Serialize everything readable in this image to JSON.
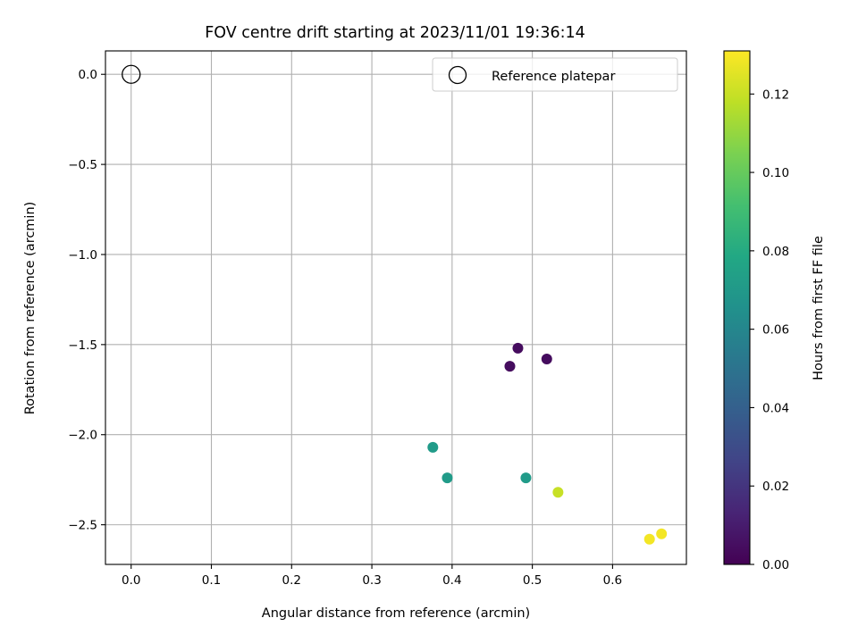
{
  "chart_data": {
    "type": "scatter",
    "title": "FOV centre drift starting at 2023/11/01 19:36:14",
    "xlabel": "Angular distance from reference (arcmin)",
    "ylabel": "Rotation from reference (arcmin)",
    "xlim": [
      -0.032,
      0.692
    ],
    "ylim": [
      -2.72,
      0.13
    ],
    "xticks": [
      0.0,
      0.1,
      0.2,
      0.3,
      0.4,
      0.5,
      0.6
    ],
    "xtick_labels": [
      "0.0",
      "0.1",
      "0.2",
      "0.3",
      "0.4",
      "0.5",
      "0.6"
    ],
    "yticks": [
      0.0,
      -0.5,
      -1.0,
      -1.5,
      -2.0,
      -2.5
    ],
    "ytick_labels": [
      "0.0",
      "−0.5",
      "−1.0",
      "−1.5",
      "−2.0",
      "−2.5"
    ],
    "grid": true,
    "reference": {
      "label": "Reference platepar",
      "x": 0.0,
      "y": 0.0
    },
    "legend": {
      "placement": "top-right",
      "entries": [
        "Reference platepar"
      ]
    },
    "points": [
      {
        "x": 0.482,
        "y": -1.52,
        "c": 0.004
      },
      {
        "x": 0.518,
        "y": -1.58,
        "c": 0.004
      },
      {
        "x": 0.472,
        "y": -1.62,
        "c": 0.004
      },
      {
        "x": 0.376,
        "y": -2.07,
        "c": 0.071
      },
      {
        "x": 0.394,
        "y": -2.24,
        "c": 0.071
      },
      {
        "x": 0.492,
        "y": -2.24,
        "c": 0.071
      },
      {
        "x": 0.532,
        "y": -2.32,
        "c": 0.12
      },
      {
        "x": 0.646,
        "y": -2.58,
        "c": 0.129
      },
      {
        "x": 0.661,
        "y": -2.55,
        "c": 0.129
      }
    ],
    "colorbar": {
      "label": "Hours from first FF file",
      "range": [
        0.0,
        0.131
      ],
      "ticks": [
        0.0,
        0.02,
        0.04,
        0.06,
        0.08,
        0.1,
        0.12
      ],
      "tick_labels": [
        "0.00",
        "0.02",
        "0.04",
        "0.06",
        "0.08",
        "0.10",
        "0.12"
      ],
      "colormap": "viridis"
    }
  }
}
